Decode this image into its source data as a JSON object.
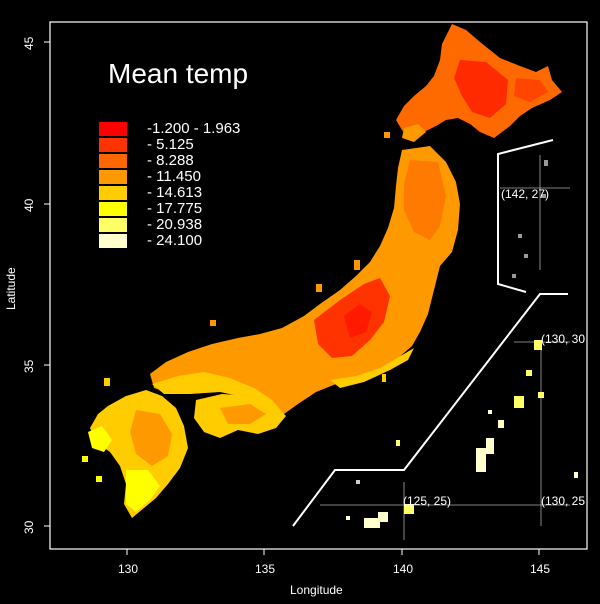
{
  "title": "Mean temp",
  "xlabel": "Longitude",
  "ylabel": "Latitude",
  "legend": [
    {
      "label": "-1.200 - 1.963",
      "color": "#ff0000"
    },
    {
      "label": "- 5.125",
      "color": "#ff3300"
    },
    {
      "label": "- 8.288",
      "color": "#ff6600"
    },
    {
      "label": "- 11.450",
      "color": "#ff9900"
    },
    {
      "label": "- 14.613",
      "color": "#ffcc00"
    },
    {
      "label": "- 17.775",
      "color": "#ffff00"
    },
    {
      "label": "- 20.938",
      "color": "#ffff66"
    },
    {
      "label": "- 24.100",
      "color": "#ffffcc"
    }
  ],
  "x_ticks": [
    "130",
    "135",
    "140",
    "145"
  ],
  "y_ticks": [
    "30",
    "35",
    "40",
    "45"
  ],
  "inset_labels": {
    "okinawa_sw": "(125, 25)",
    "okinawa_se": "(130, 25",
    "okinawa_ne": "(130, 30",
    "ogasawara": "(142, 27)"
  }
}
